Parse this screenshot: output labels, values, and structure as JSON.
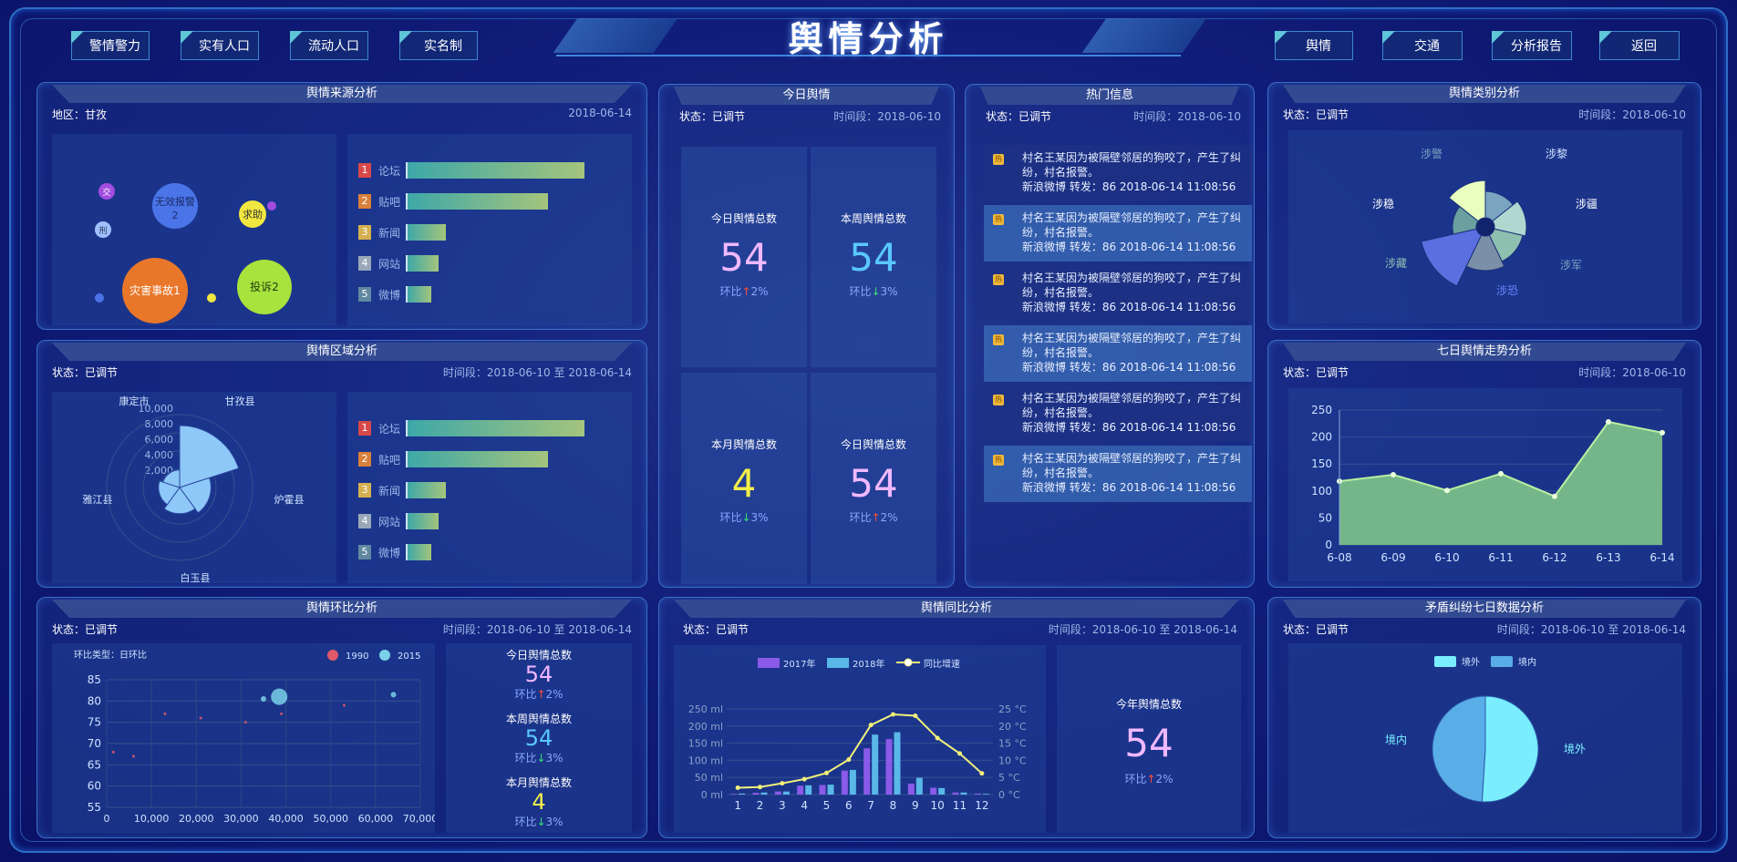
{
  "header": {
    "title": "舆情分析"
  },
  "nav_left": [
    "警情警力",
    "实有人口",
    "流动人口",
    "实名制"
  ],
  "nav_right": [
    "舆情",
    "交通",
    "分析报告",
    "返回"
  ],
  "source": {
    "title": "舆情来源分析",
    "region_label": "地区：甘孜",
    "date": "2018-06-14",
    "bubbles": [
      {
        "label": "灾害事故1",
        "color": "#e8772a"
      },
      {
        "label": "投诉2",
        "color": "#a8e23c"
      },
      {
        "label": "无效报警",
        "sub": "2",
        "color": "#4a74e8"
      },
      {
        "label": "求助",
        "color": "#f2e640"
      },
      {
        "label": "刑",
        "color": "#9fc0ff"
      },
      {
        "label": "交",
        "color": "#a24ce0"
      }
    ],
    "ranking": [
      {
        "no": "1",
        "name": "论坛",
        "value": 100,
        "color": "#d84848"
      },
      {
        "no": "2",
        "name": "贴吧",
        "value": 80,
        "color": "#d8803a"
      },
      {
        "no": "3",
        "name": "新闻",
        "value": 22,
        "color": "#d4b050"
      },
      {
        "no": "4",
        "name": "网站",
        "value": 18,
        "color": "#98a8b8"
      },
      {
        "no": "5",
        "name": "微博",
        "value": 14,
        "color": "#6088a0"
      }
    ]
  },
  "region": {
    "title": "舆情区域分析",
    "status": "状态：已调节",
    "period": "时间段：2018-06-10 至 2018-06-14",
    "labels": [
      "康定市",
      "甘孜县",
      "雅江县",
      "炉霍县",
      "白玉县"
    ],
    "ticks": [
      "10,000",
      "8,000",
      "6,000",
      "4,000",
      "2,000",
      "0"
    ],
    "ranking": [
      {
        "no": "1",
        "name": "论坛",
        "value": 100,
        "color": "#d84848"
      },
      {
        "no": "2",
        "name": "贴吧",
        "value": 80,
        "color": "#d8803a"
      },
      {
        "no": "3",
        "name": "新闻",
        "value": 22,
        "color": "#d4b050"
      },
      {
        "no": "4",
        "name": "网站",
        "value": 18,
        "color": "#98a8b8"
      },
      {
        "no": "5",
        "name": "微博",
        "value": 14,
        "color": "#6088a0"
      }
    ]
  },
  "ring": {
    "title": "舆情环比分析",
    "status": "状态：已调节",
    "period": "时间段：2018-06-10 至 2018-06-14",
    "chart_caption": "环比类型：日环比",
    "legend": [
      "1990",
      "2015"
    ],
    "kpis": [
      {
        "label": "今日舆情总数",
        "value": "54",
        "ratio": "环比",
        "pct": "2%",
        "dir": "up",
        "color": "#f0b8ff"
      },
      {
        "label": "本周舆情总数",
        "value": "54",
        "ratio": "环比",
        "pct": "3%",
        "dir": "down",
        "color": "#59c8ff"
      },
      {
        "label": "本月舆情总数",
        "value": "4",
        "ratio": "环比",
        "pct": "3%",
        "dir": "down",
        "color": "#f5ef4a"
      }
    ]
  },
  "today": {
    "title": "今日舆情",
    "status": "状态：已调节",
    "period": "时间段：2018-06-10",
    "kpis": [
      {
        "label": "今日舆情总数",
        "value": "54",
        "ratio": "环比",
        "pct": "2%",
        "dir": "up",
        "color": "#f0b8ff"
      },
      {
        "label": "本周舆情总数",
        "value": "54",
        "ratio": "环比",
        "pct": "3%",
        "dir": "down",
        "color": "#59c8ff"
      },
      {
        "label": "本月舆情总数",
        "value": "4",
        "ratio": "环比",
        "pct": "3%",
        "dir": "down",
        "color": "#f5ef4a"
      },
      {
        "label": "今日舆情总数",
        "value": "54",
        "ratio": "环比",
        "pct": "2%",
        "dir": "up",
        "color": "#f0b8ff"
      }
    ]
  },
  "hot": {
    "title": "热门信息",
    "status": "状态：已调节",
    "period": "时间段：2018-06-10",
    "tag": "热",
    "items": [
      {
        "text": "村名王某因为被隔壁邻居的狗咬了，产生了纠纷，村名报警。",
        "meta": "新浪微博 转发：86 2018-06-14 11:08:56"
      },
      {
        "text": "村名王某因为被隔壁邻居的狗咬了，产生了纠纷，村名报警。",
        "meta": "新浪微博 转发：86 2018-06-14 11:08:56"
      },
      {
        "text": "村名王某因为被隔壁邻居的狗咬了，产生了纠纷，村名报警。",
        "meta": "新浪微博 转发：86 2018-06-14 11:08:56"
      },
      {
        "text": "村名王某因为被隔壁邻居的狗咬了，产生了纠纷，村名报警。",
        "meta": "新浪微博 转发：86 2018-06-14 11:08:56"
      },
      {
        "text": "村名王某因为被隔壁邻居的狗咬了，产生了纠纷，村名报警。",
        "meta": "新浪微博 转发：86 2018-06-14 11:08:56"
      },
      {
        "text": "村名王某因为被隔壁邻居的狗咬了，产生了纠纷，村名报警。",
        "meta": "新浪微博 转发：86 2018-06-14 11:08:56"
      }
    ]
  },
  "yoy": {
    "title": "舆情同比分析",
    "status": "状态：已调节",
    "period": "时间段：2018-06-10 至 2018-06-14",
    "year_label": "今年舆情总数",
    "year_value": "54",
    "ratio": "环比",
    "pct": "2%"
  },
  "category": {
    "title": "舆情类别分析",
    "status": "状态：已调节",
    "period": "时间段：2018-06-10",
    "labels": [
      "涉警",
      "涉黎",
      "涉稳",
      "涉疆",
      "涉藏",
      "涉军",
      "涉恐"
    ]
  },
  "trend": {
    "title": "七日舆情走势分析",
    "status": "状态：已调节",
    "period": "时间段：2018-06-10"
  },
  "dispute": {
    "title": "矛盾纠纷七日数据分析",
    "status": "状态：已调节",
    "period": "时间段：2018-06-10 至 2018-06-14",
    "legend": [
      "境外",
      "境内"
    ],
    "labels": [
      "境内",
      "境外"
    ]
  },
  "chart_data": [
    {
      "type": "line",
      "name": "七日舆情走势分析",
      "categories": [
        "6-08",
        "6-09",
        "6-10",
        "6-11",
        "6-12",
        "6-13",
        "6-14"
      ],
      "values": [
        118,
        130,
        101,
        132,
        90,
        228,
        208
      ],
      "ylim": [
        0,
        250
      ],
      "yticks": [
        0,
        50,
        100,
        150,
        200,
        250
      ]
    },
    {
      "type": "bar",
      "name": "舆情同比分析",
      "categories": [
        "1",
        "2",
        "3",
        "4",
        "5",
        "6",
        "7",
        "8",
        "9",
        "10",
        "11",
        "12"
      ],
      "legend": [
        "2017年",
        "2018年",
        "同比增速"
      ],
      "series": [
        {
          "name": "2017年",
          "values": [
            2,
            5,
            9,
            26,
            28,
            70,
            135,
            162,
            32,
            20,
            6,
            3
          ]
        },
        {
          "name": "2018年",
          "values": [
            3,
            6,
            9,
            27,
            29,
            72,
            175,
            182,
            49,
            19,
            6,
            2
          ]
        },
        {
          "name": "同比增速",
          "values": [
            2.0,
            2.2,
            3.3,
            4.5,
            6.3,
            10.2,
            20.3,
            23.4,
            23.0,
            16.5,
            12.0,
            6.2
          ]
        }
      ],
      "yleft": [
        "250 ml",
        "200 ml",
        "150 ml",
        "100 ml",
        "50 ml",
        "0 ml"
      ],
      "yright": [
        "25 °C",
        "20 °C",
        "15 °C",
        "10 °C",
        "5 °C",
        "0 °C"
      ],
      "ylim_left": [
        0,
        250
      ],
      "ylim_right": [
        0,
        25
      ]
    },
    {
      "type": "scatter",
      "name": "舆情环比分析",
      "xlim": [
        0,
        70000
      ],
      "ylim": [
        55,
        85
      ],
      "xticks": [
        "0",
        "10,000",
        "20,000",
        "30,000",
        "40,000",
        "50,000",
        "60,000",
        "70,000"
      ],
      "yticks": [
        "85",
        "80",
        "75",
        "70",
        "65",
        "60",
        "55"
      ],
      "series": [
        {
          "name": "1990",
          "points": [
            [
              1500,
              68
            ],
            [
              6000,
              67
            ],
            [
              13000,
              77
            ],
            [
              21000,
              76
            ],
            [
              31000,
              75
            ],
            [
              39000,
              77
            ],
            [
              53000,
              79
            ]
          ]
        },
        {
          "name": "2015",
          "points": [
            [
              35000,
              80.5
            ],
            [
              38500,
              81
            ],
            [
              64000,
              81.5
            ]
          ]
        }
      ]
    },
    {
      "type": "pie",
      "name": "矛盾纠纷七日数据分析",
      "labels": [
        "境外",
        "境内"
      ],
      "values": [
        51,
        49
      ]
    },
    {
      "type": "pie",
      "name": "舆情类别分析",
      "labels": [
        "涉警",
        "涉黎",
        "涉疆",
        "涉军",
        "涉恐",
        "涉藏",
        "涉稳"
      ],
      "values": [
        18,
        22,
        20,
        24,
        40,
        16,
        26
      ]
    },
    {
      "type": "pie",
      "name": "舆情区域分析",
      "labels": [
        "甘孜县",
        "炉霍县",
        "白玉县",
        "雅江县",
        "康定市"
      ],
      "values": [
        8500,
        4300,
        3600,
        2900,
        2400
      ]
    }
  ]
}
